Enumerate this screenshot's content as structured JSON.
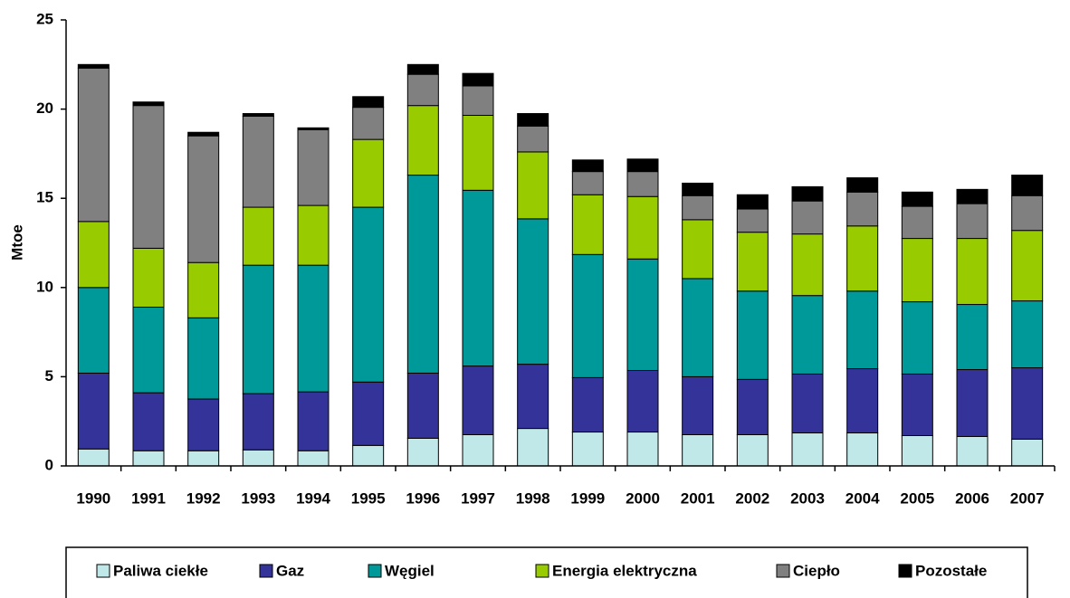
{
  "chart_data": {
    "type": "stacked-bar",
    "y_label": "Mtoe",
    "categories": [
      "1990",
      "1991",
      "1992",
      "1993",
      "1994",
      "1995",
      "1996",
      "1997",
      "1998",
      "1999",
      "2000",
      "2001",
      "2002",
      "2003",
      "2004",
      "2005",
      "2006",
      "2007"
    ],
    "series": [
      {
        "name": "Paliwa ciekłe",
        "color": "#c0e8e8",
        "values": [
          0.95,
          0.85,
          0.85,
          0.9,
          0.85,
          1.15,
          1.55,
          1.75,
          2.1,
          1.9,
          1.9,
          1.75,
          1.75,
          1.85,
          1.85,
          1.7,
          1.65,
          1.5
        ]
      },
      {
        "name": "Gaz",
        "color": "#333399",
        "values": [
          4.25,
          3.25,
          2.9,
          3.15,
          3.3,
          3.55,
          3.65,
          3.85,
          3.6,
          3.05,
          3.45,
          3.25,
          3.1,
          3.3,
          3.6,
          3.45,
          3.75,
          4.0
        ]
      },
      {
        "name": "Węgiel",
        "color": "#009999",
        "values": [
          4.8,
          4.8,
          4.55,
          7.2,
          7.1,
          9.8,
          11.1,
          9.85,
          8.15,
          6.9,
          6.25,
          5.5,
          4.95,
          4.4,
          4.35,
          4.05,
          3.65,
          3.75
        ]
      },
      {
        "name": "Energia elektryczna",
        "color": "#99cc00",
        "values": [
          3.7,
          3.3,
          3.1,
          3.25,
          3.35,
          3.8,
          3.9,
          4.2,
          3.75,
          3.35,
          3.5,
          3.3,
          3.3,
          3.45,
          3.65,
          3.55,
          3.7,
          3.95
        ]
      },
      {
        "name": "Ciepło",
        "color": "#808080",
        "values": [
          8.6,
          8.0,
          7.1,
          5.1,
          4.25,
          1.8,
          1.75,
          1.65,
          1.45,
          1.3,
          1.4,
          1.35,
          1.3,
          1.85,
          1.9,
          1.8,
          1.95,
          1.95
        ]
      },
      {
        "name": "Pozostałe",
        "color": "#000000",
        "values": [
          0.2,
          0.2,
          0.2,
          0.15,
          0.1,
          0.6,
          0.55,
          0.7,
          0.7,
          0.65,
          0.7,
          0.7,
          0.8,
          0.8,
          0.8,
          0.8,
          0.8,
          1.15
        ]
      }
    ],
    "ylim": [
      0,
      25
    ],
    "yticks": [
      0,
      5,
      10,
      15,
      20,
      25
    ],
    "legend": "bottom"
  }
}
